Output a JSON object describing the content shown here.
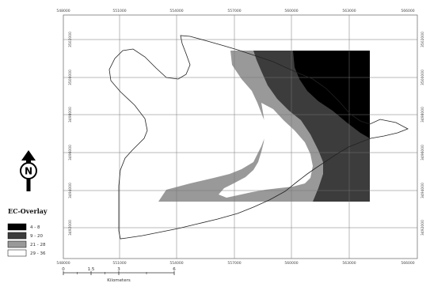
{
  "map": {
    "graticule_x_labels": [
      "548000",
      "551000",
      "554000",
      "557000",
      "560000",
      "563000",
      "566000"
    ],
    "graticule_y_labels": [
      "3502000",
      "3500000",
      "3498000",
      "3496000",
      "3494000",
      "3492000"
    ],
    "legend": {
      "title": "EC-Overlay",
      "classes": [
        {
          "label": "4 - 8",
          "color": "#000000"
        },
        {
          "label": "9 - 20",
          "color": "#3c3c3c"
        },
        {
          "label": "21 - 28",
          "color": "#999999"
        },
        {
          "label": "29 - 36",
          "color": "#ffffff"
        }
      ]
    },
    "north_arrow": {
      "letter": "N"
    },
    "scale_bar": {
      "ticks": [
        "0",
        "1.5",
        "3",
        "6"
      ],
      "unit": "Kilometers"
    }
  }
}
